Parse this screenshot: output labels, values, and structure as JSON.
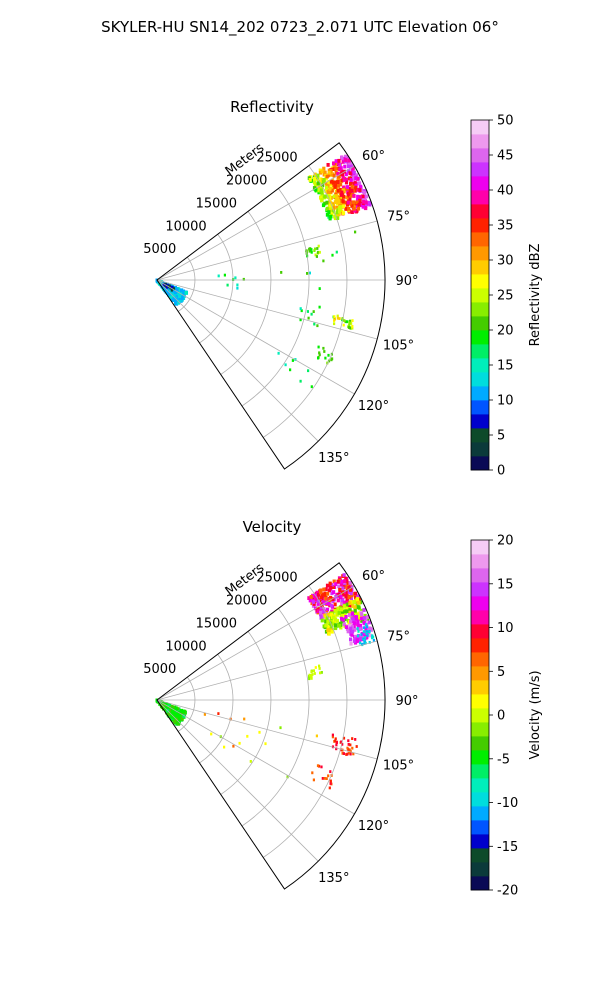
{
  "figure": {
    "title": "SKYLER-HU  SN14_202  0723_2.071 UTC Elevation 06°"
  },
  "chart_data": [
    {
      "type": "heatmap",
      "subtype": "polar-sector (radar PPI)",
      "title": "Reflectivity",
      "range_label": "Meters",
      "range_ticks": [
        "5000",
        "10000",
        "15000",
        "20000",
        "25000"
      ],
      "range_max": 30000,
      "azimuth_range_deg": [
        53,
        146
      ],
      "azimuth_ticks": [
        "60°",
        "75°",
        "90°",
        "105°",
        "120°",
        "135°"
      ],
      "grid": true,
      "colorbar": {
        "label": "Reflectivity dBZ",
        "min": 0,
        "max": 50,
        "ticks": [
          "0",
          "5",
          "10",
          "15",
          "20",
          "25",
          "30",
          "35",
          "40",
          "45",
          "50"
        ],
        "colors": [
          "#0a0a55",
          "#0b3a3a",
          "#0d4a2a",
          "#0000cc",
          "#0055ff",
          "#00aaff",
          "#00dddd",
          "#00eebb",
          "#00ee66",
          "#00ee00",
          "#44cc00",
          "#88ee00",
          "#ccff00",
          "#ffff00",
          "#ffcc00",
          "#ff9900",
          "#ff6600",
          "#ff2200",
          "#ff0033",
          "#ff00aa",
          "#ee00ee",
          "#cc33ff",
          "#dd66ee",
          "#ee99ee",
          "#f6ccf6"
        ]
      },
      "echoes": [
        {
          "az": [
            56,
            71
          ],
          "r": [
            24000,
            29800
          ],
          "dbz_min": 17,
          "dbz_max": 44,
          "density": 420,
          "gradient": "outward"
        },
        {
          "az": [
            112,
            142
          ],
          "r": [
            0,
            4200
          ],
          "dbz_min": 10,
          "dbz_max": 15,
          "density": 260,
          "gradient": "none"
        },
        {
          "az": [
            112,
            125
          ],
          "r": [
            1000,
            2500
          ],
          "dbz_min": 2,
          "dbz_max": 8,
          "density": 25,
          "gradient": "none"
        },
        {
          "az": [
            78,
            82
          ],
          "r": [
            20000,
            22000
          ],
          "dbz_min": 18,
          "dbz_max": 25,
          "density": 18,
          "gradient": "none"
        },
        {
          "az": [
            101,
            104
          ],
          "r": [
            23500,
            26500
          ],
          "dbz_min": 18,
          "dbz_max": 30,
          "density": 28,
          "gradient": "none"
        },
        {
          "az": [
            112,
            116
          ],
          "r": [
            23000,
            25500
          ],
          "dbz_min": 17,
          "dbz_max": 24,
          "density": 14,
          "gradient": "none"
        },
        {
          "az": [
            98,
            106
          ],
          "r": [
            18000,
            22000
          ],
          "dbz_min": 15,
          "dbz_max": 22,
          "density": 10,
          "gradient": "none"
        },
        {
          "az": [
            118,
            126
          ],
          "r": [
            17000,
            25000
          ],
          "dbz_min": 14,
          "dbz_max": 20,
          "density": 8,
          "gradient": "none"
        },
        {
          "az": [
            86,
            96
          ],
          "r": [
            6000,
            22000
          ],
          "dbz_min": 12,
          "dbz_max": 22,
          "density": 10,
          "gradient": "none"
        },
        {
          "az": [
            76,
            86
          ],
          "r": [
            7000,
            29000
          ],
          "dbz_min": 15,
          "dbz_max": 22,
          "density": 6,
          "gradient": "none"
        }
      ]
    },
    {
      "type": "heatmap",
      "subtype": "polar-sector (radar PPI)",
      "title": "Velocity",
      "range_label": "Meters",
      "range_ticks": [
        "5000",
        "10000",
        "15000",
        "20000",
        "25000"
      ],
      "range_max": 30000,
      "azimuth_range_deg": [
        53,
        146
      ],
      "azimuth_ticks": [
        "60°",
        "75°",
        "90°",
        "105°",
        "120°",
        "135°"
      ],
      "grid": true,
      "colorbar": {
        "label": "Velocity (m/s)",
        "min": -20,
        "max": 20,
        "ticks": [
          "-20",
          "-15",
          "-10",
          "-5",
          "0",
          "5",
          "10",
          "15",
          "20"
        ],
        "colors": [
          "#0a0a55",
          "#0b3a3a",
          "#0d4a2a",
          "#0000cc",
          "#0055ff",
          "#00aaff",
          "#00dddd",
          "#00eebb",
          "#00ee66",
          "#00ee00",
          "#44cc00",
          "#88ee00",
          "#ccff00",
          "#ffff00",
          "#ffcc00",
          "#ff9900",
          "#ff6600",
          "#ff2200",
          "#ff0033",
          "#ff00aa",
          "#ee00ee",
          "#cc33ff",
          "#dd66ee",
          "#ee99ee",
          "#f6ccf6"
        ]
      },
      "echoes": [
        {
          "az": [
            56,
            64
          ],
          "r": [
            24000,
            29800
          ],
          "dbz_min": 6,
          "dbz_max": 16,
          "density": 220,
          "gradient": "none"
        },
        {
          "az": [
            63,
            69
          ],
          "r": [
            24000,
            29800
          ],
          "dbz_min": -4,
          "dbz_max": 4,
          "density": 150,
          "gradient": "none"
        },
        {
          "az": [
            66,
            74
          ],
          "r": [
            26500,
            29800
          ],
          "dbz_min": 12,
          "dbz_max": 17,
          "density": 90,
          "gradient": "none"
        },
        {
          "az": [
            70,
            75
          ],
          "r": [
            27500,
            29800
          ],
          "dbz_min": -12,
          "dbz_max": -8,
          "density": 30,
          "gradient": "none"
        },
        {
          "az": [
            112,
            142
          ],
          "r": [
            0,
            4200
          ],
          "dbz_min": -6,
          "dbz_max": -3,
          "density": 240,
          "gradient": "none"
        },
        {
          "az": [
            78,
            82
          ],
          "r": [
            20000,
            22000
          ],
          "dbz_min": -2,
          "dbz_max": 1,
          "density": 16,
          "gradient": "none"
        },
        {
          "az": [
            101,
            106
          ],
          "r": [
            23500,
            27000
          ],
          "dbz_min": 6,
          "dbz_max": 10,
          "density": 34,
          "gradient": "none"
        },
        {
          "az": [
            112,
            117
          ],
          "r": [
            22500,
            25500
          ],
          "dbz_min": 6,
          "dbz_max": 10,
          "density": 16,
          "gradient": "none"
        },
        {
          "az": [
            98,
            126
          ],
          "r": [
            6000,
            25000
          ],
          "dbz_min": -2,
          "dbz_max": 8,
          "density": 16,
          "gradient": "none"
        }
      ]
    }
  ]
}
